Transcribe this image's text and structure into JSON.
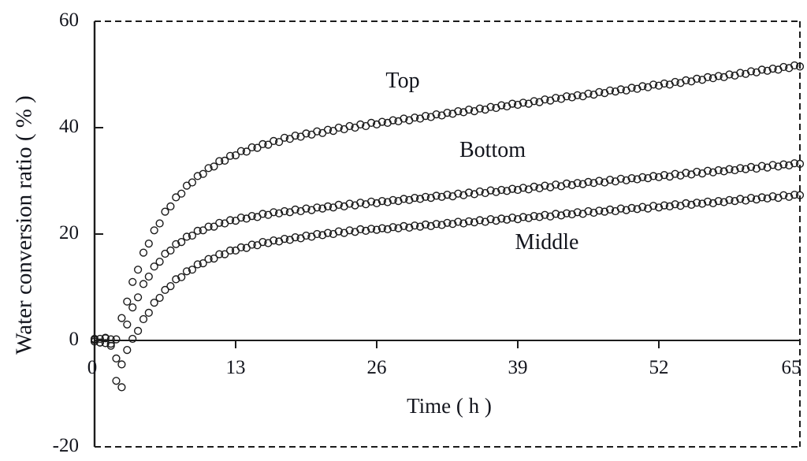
{
  "chart_data": {
    "type": "scatter",
    "title": "",
    "xlabel": "Time ( h )",
    "ylabel": "Water conversion ratio ( % )",
    "xlim": [
      0,
      65
    ],
    "ylim": [
      -20,
      60
    ],
    "x_ticks": [
      0,
      13,
      26,
      39,
      52,
      65
    ],
    "y_ticks": [
      60,
      40,
      20,
      0,
      -20
    ],
    "x_tick_labels": [
      "0",
      "13",
      "26",
      "39",
      "52",
      "65"
    ],
    "y_tick_labels": [
      "60",
      "40",
      "20",
      "0",
      "-20"
    ],
    "grid": false,
    "border_style": "dashed-top-right-bottom, solid-left-axis, solid-zero-line",
    "marker": "open-circle",
    "marker_color": "#1a1a1a",
    "legend_position": "inline-annotations",
    "annotations": [
      {
        "text": "Top",
        "x_h": 28.4,
        "y_pct": 48.7
      },
      {
        "text": "Bottom",
        "x_h": 36.7,
        "y_pct": 35.9
      },
      {
        "text": "Middle",
        "x_h": 41.7,
        "y_pct": 18.2
      }
    ],
    "x_start": 0,
    "x_step": 0.5,
    "series": [
      {
        "name": "Top",
        "values": [
          0.3,
          -0.4,
          0.5,
          -0.6,
          0.2,
          4.2,
          7.3,
          11,
          13.3,
          16.5,
          18.2,
          20.7,
          22,
          24.2,
          25.2,
          26.9,
          27.6,
          29.1,
          29.7,
          30.9,
          31.3,
          32.4,
          32.7,
          33.7,
          33.8,
          34.7,
          34.8,
          35.6,
          35.5,
          36.3,
          36.2,
          36.9,
          36.8,
          37.5,
          37.3,
          38.1,
          37.9,
          38.5,
          38.3,
          38.9,
          38.7,
          39.3,
          39,
          39.6,
          39.4,
          40,
          39.7,
          40.3,
          40,
          40.6,
          40.3,
          40.9,
          40.6,
          41.1,
          40.9,
          41.4,
          41.2,
          41.7,
          41.4,
          41.9,
          41.7,
          42.2,
          42,
          42.5,
          42.3,
          42.8,
          42.6,
          43.1,
          42.9,
          43.4,
          43.1,
          43.6,
          43.4,
          43.9,
          43.7,
          44.2,
          44,
          44.5,
          44.3,
          44.7,
          44.5,
          45,
          44.8,
          45.3,
          45.1,
          45.6,
          45.4,
          45.9,
          45.7,
          46.1,
          45.9,
          46.4,
          46.2,
          46.7,
          46.5,
          47,
          46.8,
          47.2,
          47,
          47.5,
          47.3,
          47.8,
          47.6,
          48.1,
          47.9,
          48.3,
          48.1,
          48.6,
          48.4,
          48.9,
          48.7,
          49.2,
          49,
          49.5,
          49.3,
          49.7,
          49.5,
          50,
          49.8,
          50.3,
          50.1,
          50.6,
          50.4,
          50.9,
          50.7,
          51.1,
          50.9,
          51.4,
          51.2,
          51.7,
          51.5
        ]
      },
      {
        "name": "Bottom",
        "values": [
          -0.2,
          0.3,
          -0.5,
          0.2,
          -3.4,
          -4.5,
          3,
          6.2,
          8.1,
          10.6,
          12,
          13.9,
          14.8,
          16.3,
          16.9,
          18.1,
          18.5,
          19.5,
          19.7,
          20.6,
          20.7,
          21.4,
          21.4,
          22.1,
          22,
          22.6,
          22.5,
          23.1,
          22.9,
          23.4,
          23.2,
          23.8,
          23.6,
          24.1,
          23.9,
          24.3,
          24.1,
          24.6,
          24.3,
          24.8,
          24.5,
          25,
          24.8,
          25.2,
          25,
          25.5,
          25.2,
          25.7,
          25.4,
          25.9,
          25.6,
          26.1,
          25.8,
          26.2,
          26,
          26.4,
          26.2,
          26.6,
          26.4,
          26.8,
          26.6,
          27,
          26.8,
          27.2,
          27,
          27.4,
          27.1,
          27.6,
          27.3,
          27.8,
          27.5,
          28,
          27.7,
          28.2,
          27.9,
          28.3,
          28.1,
          28.5,
          28.3,
          28.7,
          28.4,
          28.9,
          28.6,
          29.1,
          28.8,
          29.3,
          29,
          29.5,
          29.2,
          29.6,
          29.4,
          29.8,
          29.6,
          30,
          29.7,
          30.2,
          29.9,
          30.4,
          30.1,
          30.5,
          30.3,
          30.7,
          30.5,
          30.9,
          30.7,
          31.1,
          30.8,
          31.3,
          31,
          31.5,
          31.2,
          31.7,
          31.4,
          31.9,
          31.6,
          32,
          31.8,
          32.2,
          32,
          32.4,
          32.2,
          32.6,
          32.3,
          32.8,
          32.5,
          33,
          32.7,
          33.1,
          32.9,
          33.3,
          33.2
        ]
      },
      {
        "name": "Middle",
        "values": [
          0.1,
          -0.4,
          0.4,
          -1,
          -7.6,
          -8.8,
          -1.8,
          0.3,
          1.8,
          4,
          5.2,
          7.1,
          8,
          9.5,
          10.2,
          11.5,
          11.9,
          13,
          13.3,
          14.3,
          14.5,
          15.3,
          15.4,
          16.2,
          16.2,
          16.9,
          16.9,
          17.5,
          17.4,
          18,
          17.9,
          18.5,
          18.3,
          18.8,
          18.6,
          19.1,
          18.9,
          19.4,
          19.2,
          19.7,
          19.5,
          20,
          19.8,
          20.2,
          20,
          20.5,
          20.2,
          20.7,
          20.4,
          20.9,
          20.6,
          21,
          20.8,
          21.1,
          20.9,
          21.3,
          21.1,
          21.5,
          21.2,
          21.6,
          21.4,
          21.8,
          21.5,
          21.9,
          21.7,
          22.1,
          21.9,
          22.3,
          22,
          22.4,
          22.2,
          22.6,
          22.3,
          22.8,
          22.5,
          22.9,
          22.7,
          23.1,
          22.8,
          23.2,
          23,
          23.4,
          23.2,
          23.6,
          23.3,
          23.8,
          23.5,
          23.9,
          23.7,
          24.1,
          23.8,
          24.3,
          24,
          24.4,
          24.2,
          24.6,
          24.3,
          24.8,
          24.5,
          24.9,
          24.7,
          25.1,
          24.8,
          25.3,
          25,
          25.4,
          25.2,
          25.6,
          25.3,
          25.8,
          25.5,
          25.9,
          25.7,
          26.1,
          25.8,
          26.2,
          26,
          26.4,
          26.2,
          26.6,
          26.3,
          26.8,
          26.5,
          26.9,
          26.7,
          27.1,
          26.8,
          27.3,
          27,
          27.4,
          27.3
        ]
      }
    ]
  }
}
